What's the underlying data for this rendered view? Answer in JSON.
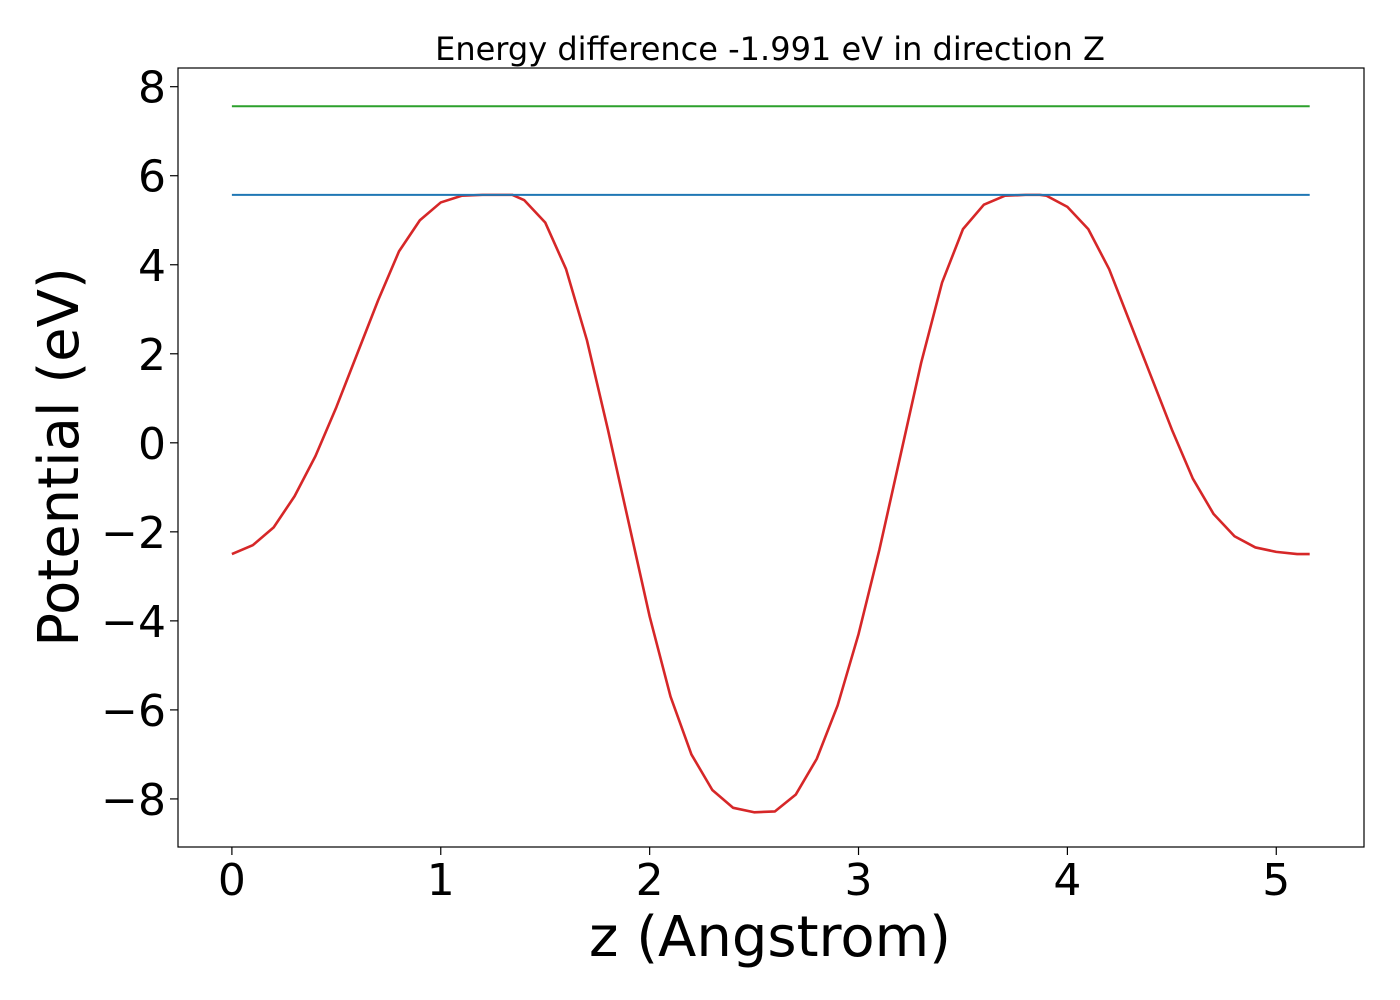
{
  "chart_data": {
    "type": "line",
    "title": "Energy difference -1.991 eV in direction Z",
    "xlabel": "z (Angstrom)",
    "ylabel": "Potential (eV)",
    "xlim": [
      -0.258,
      5.42
    ],
    "ylim": [
      -9.08,
      8.42
    ],
    "xticks": [
      0,
      1,
      2,
      3,
      4,
      5
    ],
    "xtick_labels": [
      "0",
      "1",
      "2",
      "3",
      "4",
      "5"
    ],
    "yticks": [
      -8,
      -6,
      -4,
      -2,
      0,
      2,
      4,
      6,
      8
    ],
    "ytick_labels": [
      "−8",
      "−6",
      "−4",
      "−2",
      "0",
      "2",
      "4",
      "6",
      "8"
    ],
    "grid": false,
    "series": [
      {
        "color": "#d62728",
        "x": [
          0.0,
          0.1,
          0.2,
          0.3,
          0.4,
          0.5,
          0.6,
          0.7,
          0.8,
          0.9,
          1.0,
          1.1,
          1.2,
          1.3,
          1.342,
          1.4,
          1.5,
          1.6,
          1.7,
          1.8,
          1.9,
          2.0,
          2.1,
          2.2,
          2.3,
          2.4,
          2.5,
          2.6,
          2.7,
          2.8,
          2.9,
          3.0,
          3.1,
          3.2,
          3.3,
          3.4,
          3.5,
          3.6,
          3.7,
          3.8,
          3.868,
          3.9,
          4.0,
          4.1,
          4.2,
          4.3,
          4.4,
          4.5,
          4.6,
          4.7,
          4.8,
          4.9,
          5.0,
          5.1,
          5.16
        ],
        "y": [
          -2.5,
          -2.3,
          -1.9,
          -1.2,
          -0.3,
          0.8,
          2.0,
          3.2,
          4.3,
          5.0,
          5.4,
          5.55,
          5.57,
          5.57,
          5.57,
          5.45,
          4.95,
          3.9,
          2.3,
          0.3,
          -1.8,
          -3.9,
          -5.7,
          -7.0,
          -7.8,
          -8.2,
          -8.3,
          -8.28,
          -7.9,
          -7.1,
          -5.9,
          -4.3,
          -2.4,
          -0.3,
          1.8,
          3.6,
          4.8,
          5.35,
          5.55,
          5.57,
          5.57,
          5.55,
          5.3,
          4.8,
          3.9,
          2.7,
          1.5,
          0.3,
          -0.8,
          -1.6,
          -2.1,
          -2.35,
          -2.45,
          -2.5,
          -2.5
        ]
      },
      {
        "color": "#1f77b4",
        "x": [
          0.0,
          5.16
        ],
        "y": [
          5.57,
          5.57
        ]
      },
      {
        "color": "#2ca02c",
        "x": [
          0.0,
          5.16
        ],
        "y": [
          7.56,
          7.56
        ]
      }
    ]
  },
  "colors": {
    "axis": "#000000",
    "background": "#ffffff"
  }
}
